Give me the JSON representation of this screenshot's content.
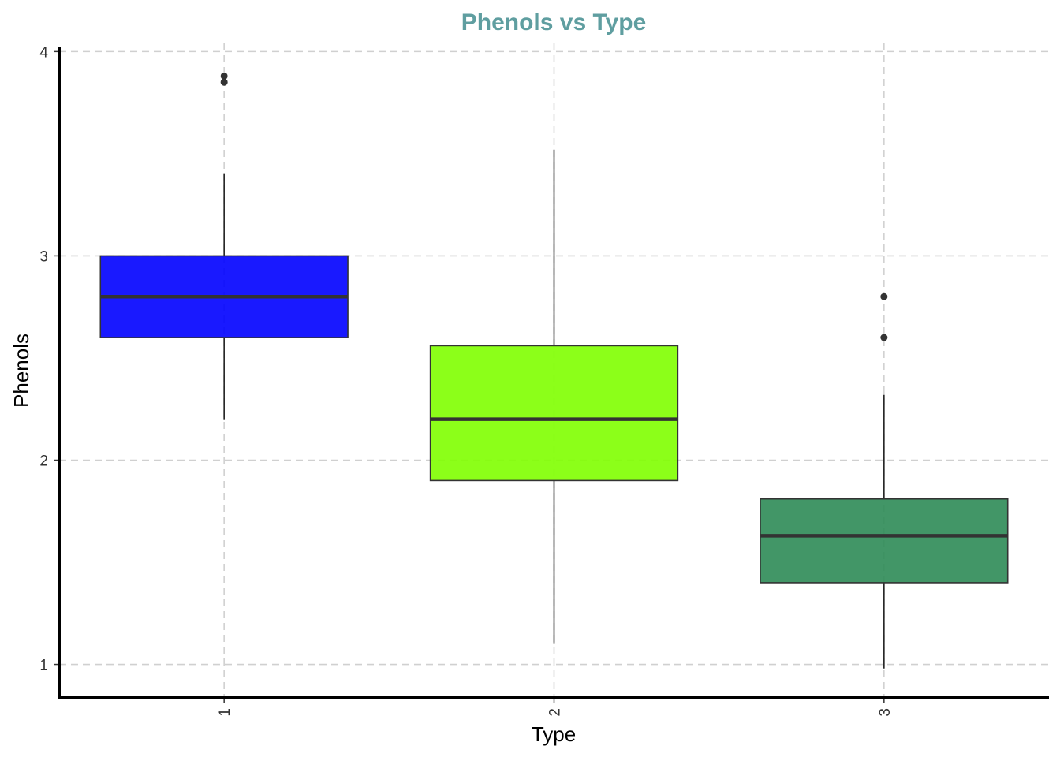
{
  "chart_data": {
    "type": "box",
    "title": "Phenols vs Type",
    "xlabel": "Type",
    "ylabel": "Phenols",
    "categories": [
      "1",
      "2",
      "3"
    ],
    "ylim": [
      0.84,
      4.04
    ],
    "yticks": [
      "1",
      "2",
      "3",
      "4"
    ],
    "grid": true,
    "legend": "none",
    "title_color": "#5f9ea0",
    "series": [
      {
        "category": "1",
        "whisker_low": 2.2,
        "q1": 2.6,
        "median": 2.8,
        "q3": 3.0,
        "whisker_high": 3.4,
        "outliers": [
          3.88,
          3.85
        ],
        "color": "#0000ff"
      },
      {
        "category": "2",
        "whisker_low": 1.1,
        "q1": 1.9,
        "median": 2.2,
        "q3": 2.56,
        "whisker_high": 3.52,
        "outliers": [],
        "color": "#7fff00"
      },
      {
        "category": "3",
        "whisker_low": 0.98,
        "q1": 1.4,
        "median": 1.63,
        "q3": 1.81,
        "whisker_high": 2.32,
        "outliers": [
          2.8,
          2.6
        ],
        "color": "#2e8b57"
      }
    ]
  }
}
